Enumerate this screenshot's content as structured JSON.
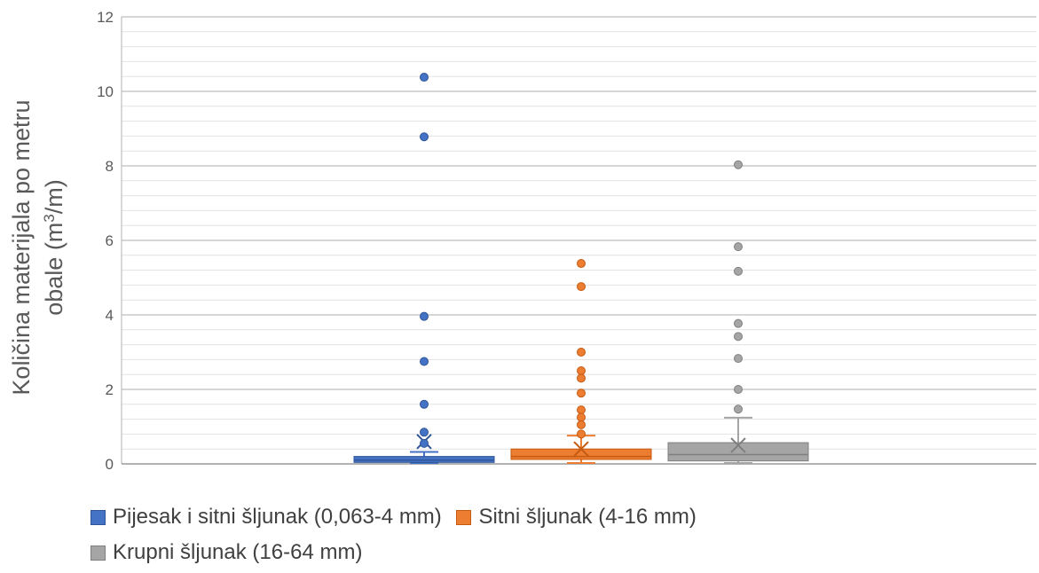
{
  "chart_data": {
    "type": "box",
    "title": "",
    "xlabel": "",
    "ylabel": "Količina materijala po metru obale (m³/m)",
    "ylabel_lines": [
      "Količina materijala po metru",
      "obale (m",
      "3",
      "/m)"
    ],
    "ylim": [
      0,
      12
    ],
    "yticks": [
      "0",
      "2",
      "4",
      "6",
      "8",
      "10",
      "12"
    ],
    "minor_gridlines": true,
    "legend_position": "bottom",
    "series": [
      {
        "name": "Pijesak i sitni šljunak (0,063-4 mm)",
        "color": "#4472C4",
        "min": 0.0,
        "q1": 0.04,
        "median": 0.1,
        "q3": 0.2,
        "whisker_high": 0.32,
        "mean": 0.6,
        "outliers": [
          10.38,
          8.78,
          3.96,
          2.75,
          1.6,
          0.85,
          0.55
        ]
      },
      {
        "name": "Sitni šljunak (4-16 mm)",
        "color": "#ED7D31",
        "min": 0.0,
        "q1": 0.12,
        "median": 0.2,
        "q3": 0.4,
        "whisker_high": 0.76,
        "mean": 0.4,
        "outliers": [
          5.38,
          4.76,
          3.0,
          2.5,
          2.3,
          1.9,
          1.45,
          1.25,
          1.05,
          0.8
        ]
      },
      {
        "name": "Krupni šljunak (16-64 mm)",
        "color": "#A5A5A5",
        "min": 0.0,
        "q1": 0.08,
        "median": 0.25,
        "q3": 0.57,
        "whisker_high": 1.24,
        "mean": 0.5,
        "outliers": [
          8.03,
          5.83,
          5.17,
          3.77,
          3.42,
          2.83,
          2.0,
          1.47
        ]
      }
    ]
  }
}
